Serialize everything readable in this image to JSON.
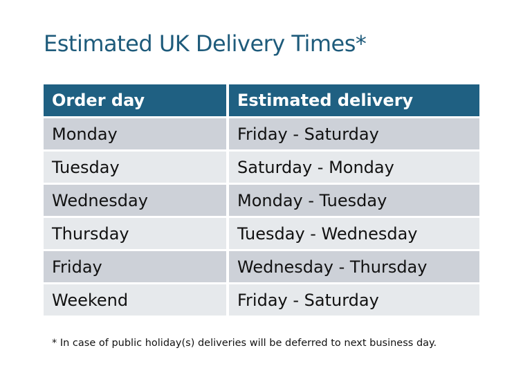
{
  "title": "Estimated UK Delivery Times*",
  "table": {
    "headers": [
      "Order day",
      "Estimated delivery"
    ],
    "rows": [
      [
        "Monday",
        "Friday - Saturday"
      ],
      [
        "Tuesday",
        "Saturday - Monday"
      ],
      [
        "Wednesday",
        "Monday - Tuesday"
      ],
      [
        "Thursday",
        "Tuesday - Wednesday"
      ],
      [
        "Friday",
        "Wednesday - Thursday"
      ],
      [
        "Weekend",
        "Friday - Saturday"
      ]
    ]
  },
  "footnote": "* In case of public holiday(s) deliveries will be deferred to next business day.",
  "colors": {
    "header": "#1f6082",
    "title": "#1e5b7b",
    "row_dark": "#cdd1d8",
    "row_light": "#e6e9ec"
  }
}
